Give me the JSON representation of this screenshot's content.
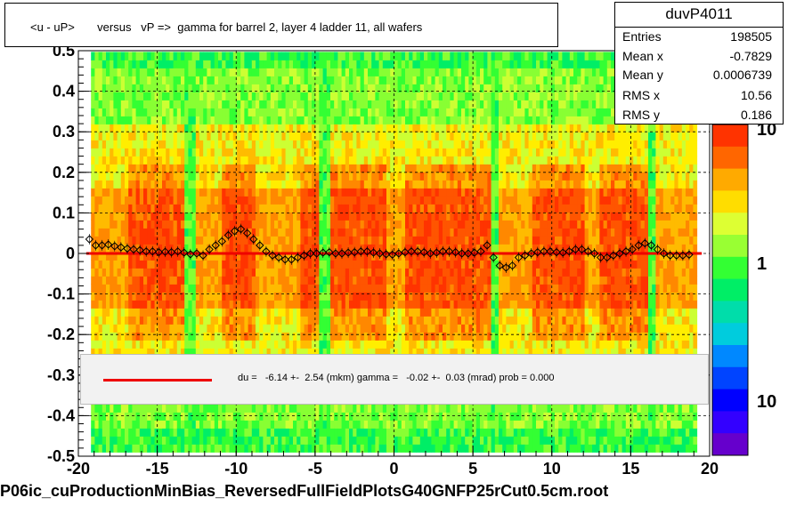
{
  "title": "<u - uP>       versus   vP =>  gamma for barrel 2, layer 4 ladder 11, all wafers",
  "stats": {
    "name": "duvP4011",
    "rows": [
      {
        "key": "Entries",
        "value": "198505"
      },
      {
        "key": "Mean x",
        "value": "-0.7829"
      },
      {
        "key": "Mean y",
        "value": "0.0006739"
      },
      {
        "key": "RMS x",
        "value": "10.56"
      },
      {
        "key": "RMS y",
        "value": "0.186"
      }
    ]
  },
  "legend": {
    "text": "du =   -6.14 +-  2.54 (mkm) gamma =   -0.02 +-  0.03 (mrad) prob = 0.000",
    "line_color": "#ee0000"
  },
  "footer": "P06ic_cuProductionMinBias_ReversedFullFieldPlotsG40GNFP25rCut0.5cm.root",
  "colorbar": {
    "labels": [
      "10",
      "1",
      "10"
    ],
    "colors": [
      "#ff3300",
      "#ff6600",
      "#ffaa00",
      "#ffdd00",
      "#ddff33",
      "#99ff33",
      "#33ff33",
      "#00ee66",
      "#00ddaa",
      "#00ccdd",
      "#0088ff",
      "#0044ff",
      "#0000ff",
      "#3300ff",
      "#6600cc"
    ]
  },
  "chart_data": {
    "type": "heatmap",
    "xlim": [
      -20,
      20
    ],
    "ylim": [
      -0.5,
      0.5
    ],
    "x_ticks": [
      -20,
      -15,
      -10,
      -5,
      0,
      5,
      10,
      15,
      20
    ],
    "y_ticks": [
      "-0.5",
      "-0.4",
      "-0.3",
      "-0.2",
      "-0.1",
      "0",
      "0.1",
      "0.2",
      "0.3",
      "0.4",
      "0.5"
    ],
    "grid": true,
    "fit_line": {
      "x": [
        -19.5,
        19.5
      ],
      "y": [
        0.0,
        0.0
      ],
      "color": "#ee0000"
    },
    "profile_points": {
      "x": [
        -19.3,
        -18.9,
        -18.5,
        -18.1,
        -17.7,
        -17.3,
        -16.9,
        -16.5,
        -16.1,
        -15.7,
        -15.3,
        -14.9,
        -14.5,
        -14.1,
        -13.7,
        -13.3,
        -12.9,
        -12.5,
        -12.1,
        -11.7,
        -11.3,
        -10.9,
        -10.5,
        -10.1,
        -9.7,
        -9.3,
        -8.9,
        -8.5,
        -8.1,
        -7.7,
        -7.3,
        -6.9,
        -6.5,
        -6.1,
        -5.7,
        -5.3,
        -4.9,
        -4.5,
        -4.1,
        -3.7,
        -3.3,
        -2.9,
        -2.5,
        -2.1,
        -1.7,
        -1.3,
        -0.9,
        -0.5,
        -0.1,
        0.3,
        0.7,
        1.1,
        1.5,
        1.9,
        2.3,
        2.7,
        3.1,
        3.5,
        3.9,
        4.3,
        4.7,
        5.1,
        5.5,
        5.9,
        6.3,
        6.7,
        7.1,
        7.5,
        7.9,
        8.3,
        8.7,
        9.1,
        9.5,
        9.9,
        10.3,
        10.7,
        11.1,
        11.5,
        11.9,
        12.3,
        12.7,
        13.1,
        13.5,
        13.9,
        14.3,
        14.7,
        15.1,
        15.5,
        15.9,
        16.3,
        16.7,
        17.1,
        17.5,
        17.9,
        18.3,
        18.7
      ],
      "y": [
        0.035,
        0.02,
        0.02,
        0.022,
        0.018,
        0.015,
        0.012,
        0.01,
        0.008,
        0.005,
        0.005,
        0.003,
        0.004,
        0.003,
        0.005,
        0.002,
        -0.002,
        0.0,
        -0.005,
        0.01,
        0.02,
        0.03,
        0.045,
        0.055,
        0.06,
        0.05,
        0.035,
        0.02,
        0.005,
        -0.005,
        -0.01,
        -0.015,
        -0.015,
        -0.01,
        -0.005,
        0.0,
        0.0,
        0.002,
        0.003,
        0.0,
        0.0,
        0.002,
        0.003,
        0.005,
        0.005,
        0.002,
        0.0,
        -0.002,
        -0.003,
        0.0,
        0.003,
        0.005,
        0.005,
        0.003,
        0.0,
        0.002,
        0.005,
        0.005,
        0.003,
        0.0,
        0.0,
        0.002,
        0.005,
        0.02,
        -0.01,
        -0.03,
        -0.035,
        -0.03,
        -0.01,
        -0.005,
        0.0,
        0.003,
        0.005,
        0.005,
        0.003,
        0.002,
        0.005,
        0.01,
        0.01,
        0.005,
        0.0,
        -0.01,
        -0.01,
        -0.005,
        0.0,
        0.005,
        0.01,
        0.02,
        0.025,
        0.02,
        0.01,
        0.0,
        -0.005,
        -0.005,
        -0.005,
        -0.003
      ]
    }
  }
}
